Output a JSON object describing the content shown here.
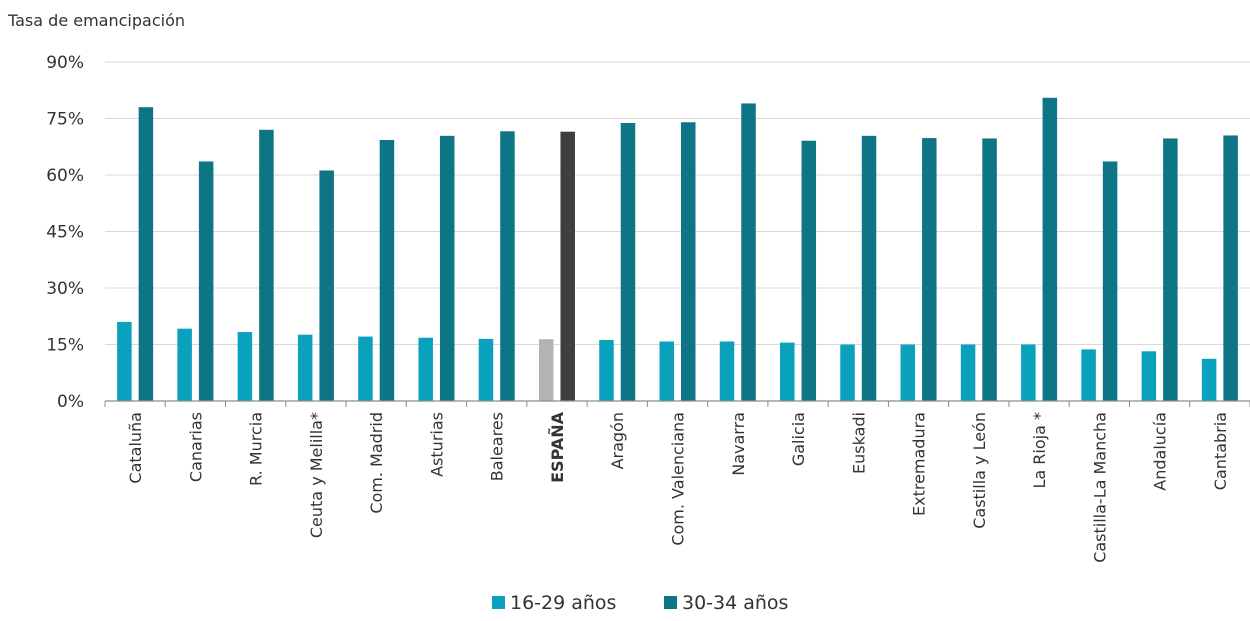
{
  "chart_data": {
    "type": "bar",
    "ylabel": "Tasa de emancipación",
    "ylim": [
      0,
      90
    ],
    "yticks": [
      0,
      15,
      30,
      45,
      60,
      75,
      90
    ],
    "ytick_suffix": "%",
    "grid": true,
    "legend_position": "bottom",
    "categories": [
      "Cataluña",
      "Canarias",
      "R. Murcia",
      "Ceuta y Melilla*",
      "Com. Madrid",
      "Asturias",
      "Baleares",
      "ESPAÑA",
      "Aragón",
      "Com. Valenciana",
      "Navarra",
      "Galicia",
      "Euskadi",
      "Extremadura",
      "Castilla y León",
      "La Rioja *",
      "Castilla-La Mancha",
      "Andalucía",
      "Cantabria"
    ],
    "highlight_category": "ESPAÑA",
    "series": [
      {
        "name": "16-29 años",
        "color": "#0aa1bd",
        "highlight_color": "#b3b3b3",
        "values": [
          21.0,
          19.2,
          18.3,
          17.6,
          17.1,
          16.8,
          16.5,
          16.4,
          16.2,
          15.8,
          15.8,
          15.5,
          15.0,
          15.0,
          15.0,
          15.0,
          13.7,
          13.2,
          11.2
        ]
      },
      {
        "name": "30-34 años",
        "color": "#0d7586",
        "highlight_color": "#3f3f3f",
        "values": [
          78.0,
          63.6,
          72.0,
          61.2,
          69.3,
          70.4,
          71.6,
          71.5,
          73.8,
          74.0,
          79.0,
          69.1,
          70.4,
          69.8,
          69.7,
          80.5,
          63.6,
          69.7,
          70.5
        ]
      }
    ]
  }
}
